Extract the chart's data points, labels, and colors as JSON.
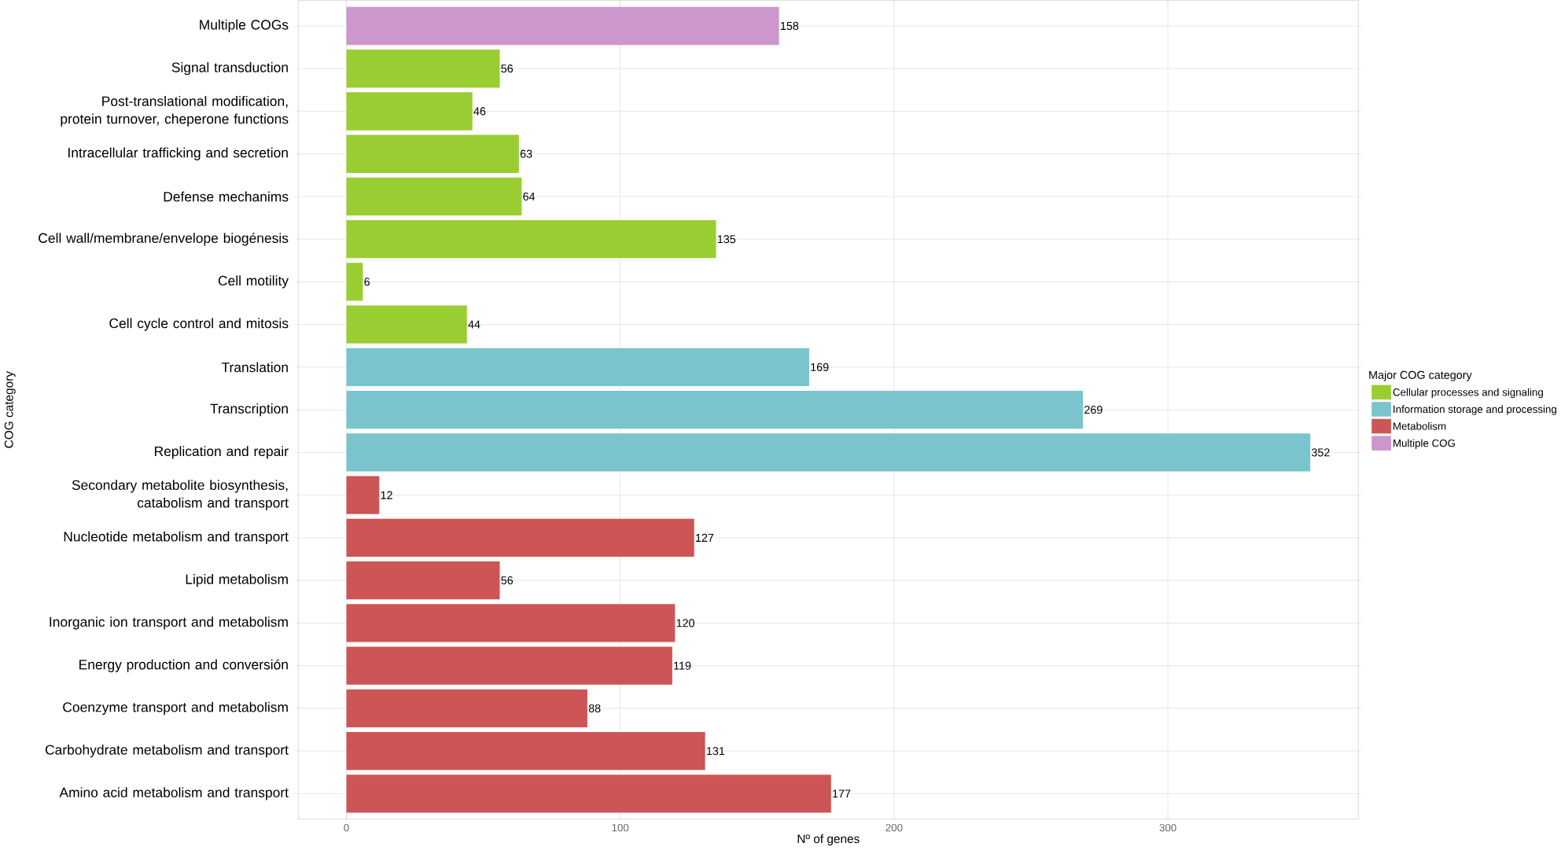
{
  "chart_data": {
    "type": "bar",
    "orientation": "horizontal",
    "xlabel": "Nº of genes",
    "ylabel": "COG category",
    "legend_title": "Major COG category",
    "legend": "right",
    "grid": true,
    "data_labels": true,
    "categories": [
      "Multiple COGs",
      "Signal transduction",
      "Post-translational modification, protein turnover, cheperone functions",
      "Intracellular trafficking and secretion",
      "Defense mechanims",
      "Cell wall/membrane/envelope biogénesis",
      "Cell motility",
      "Cell cycle control and mitosis",
      "Translation",
      "Transcription",
      "Replication and repair",
      "Secondary metabolite biosynthesis, catabolism and transport",
      "Nucleotide metabolism and transport",
      "Lipid metabolism",
      "Inorganic ion transport and metabolism",
      "Energy production and conversión",
      "Coenzyme transport and metabolism",
      "Carbohydrate metabolism and transport",
      "Amino acid metabolism and transport"
    ],
    "xlim": [
      -17.6,
      369.6
    ],
    "xticks": [
      0,
      100,
      200,
      300
    ],
    "series": [
      {
        "name": "Cellular processes and signaling",
        "color": "#9acd32",
        "values": [
          null,
          56,
          46,
          63,
          64,
          135,
          6,
          44,
          null,
          null,
          null,
          null,
          null,
          null,
          null,
          null,
          null,
          null,
          null
        ]
      },
      {
        "name": "Information storage and processing",
        "color": "#7ac5cd",
        "values": [
          null,
          null,
          null,
          null,
          null,
          null,
          null,
          null,
          169,
          269,
          352,
          null,
          null,
          null,
          null,
          null,
          null,
          null,
          null
        ]
      },
      {
        "name": "Metabolism",
        "color": "#cd5555",
        "values": [
          null,
          null,
          null,
          null,
          null,
          null,
          null,
          null,
          null,
          null,
          null,
          12,
          127,
          56,
          120,
          119,
          88,
          131,
          177
        ]
      },
      {
        "name": "Multiple COG",
        "color": "#cd96cd",
        "values": [
          158,
          null,
          null,
          null,
          null,
          null,
          null,
          null,
          null,
          null,
          null,
          null,
          null,
          null,
          null,
          null,
          null,
          null,
          null
        ]
      }
    ]
  }
}
